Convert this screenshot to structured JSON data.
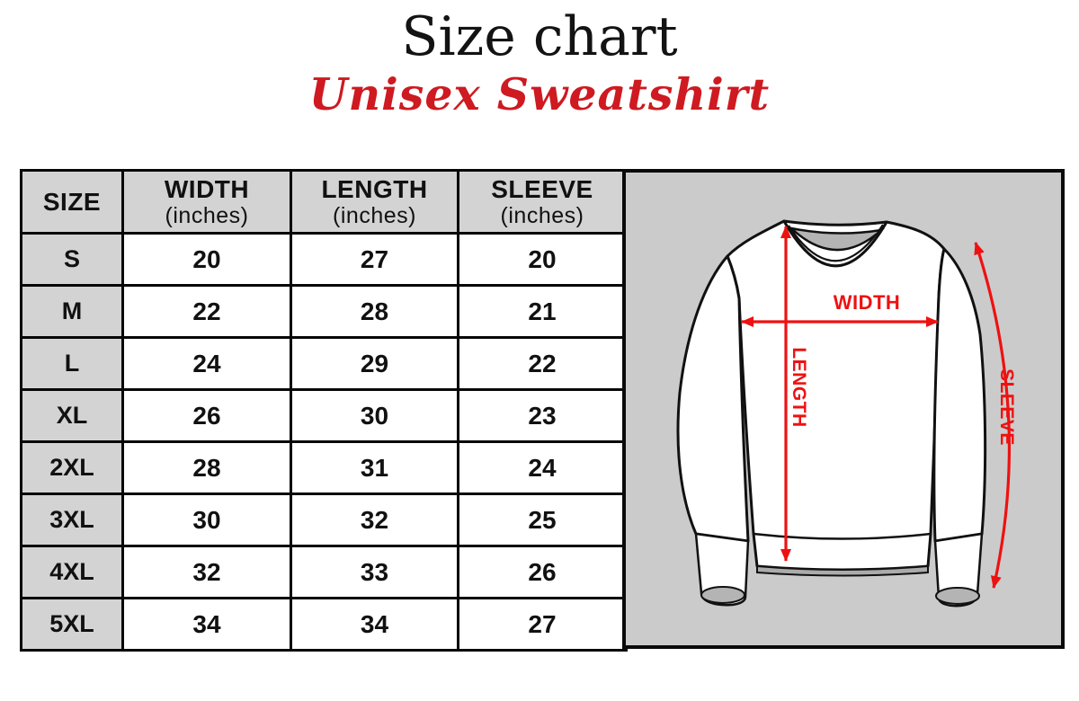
{
  "header": {
    "title": "Size chart",
    "subtitle": "Unisex Sweatshirt"
  },
  "table": {
    "columns": [
      {
        "label": "SIZE",
        "sub": ""
      },
      {
        "label": "WIDTH",
        "sub": "(inches)"
      },
      {
        "label": "LENGTH",
        "sub": "(inches)"
      },
      {
        "label": "SLEEVE",
        "sub": "(inches)"
      }
    ],
    "rows": [
      [
        "S",
        "20",
        "27",
        "20"
      ],
      [
        "M",
        "22",
        "28",
        "21"
      ],
      [
        "L",
        "24",
        "29",
        "22"
      ],
      [
        "XL",
        "26",
        "30",
        "23"
      ],
      [
        "2XL",
        "28",
        "31",
        "24"
      ],
      [
        "3XL",
        "30",
        "32",
        "25"
      ],
      [
        "4XL",
        "32",
        "33",
        "26"
      ],
      [
        "5XL",
        "34",
        "34",
        "27"
      ]
    ]
  },
  "diagram": {
    "width_label": "WIDTH",
    "length_label": "LENGTH",
    "sleeve_label": "SLEEVE"
  },
  "colors": {
    "subtitle_red": "#ce1a20",
    "arrow_red": "#ee1111",
    "table_header_gray": "#d3d3d3",
    "panel_gray": "#cbcbcb",
    "neck_shadow_gray": "#b4b4b4"
  },
  "chart_data": {
    "type": "table",
    "title": "Size chart — Unisex Sweatshirt",
    "columns": [
      "SIZE",
      "WIDTH (inches)",
      "LENGTH (inches)",
      "SLEEVE (inches)"
    ],
    "rows": [
      [
        "S",
        20,
        27,
        20
      ],
      [
        "M",
        22,
        28,
        21
      ],
      [
        "L",
        24,
        29,
        22
      ],
      [
        "XL",
        26,
        30,
        23
      ],
      [
        "2XL",
        28,
        31,
        24
      ],
      [
        "3XL",
        30,
        32,
        25
      ],
      [
        "4XL",
        32,
        33,
        26
      ],
      [
        "5XL",
        34,
        34,
        27
      ]
    ]
  }
}
